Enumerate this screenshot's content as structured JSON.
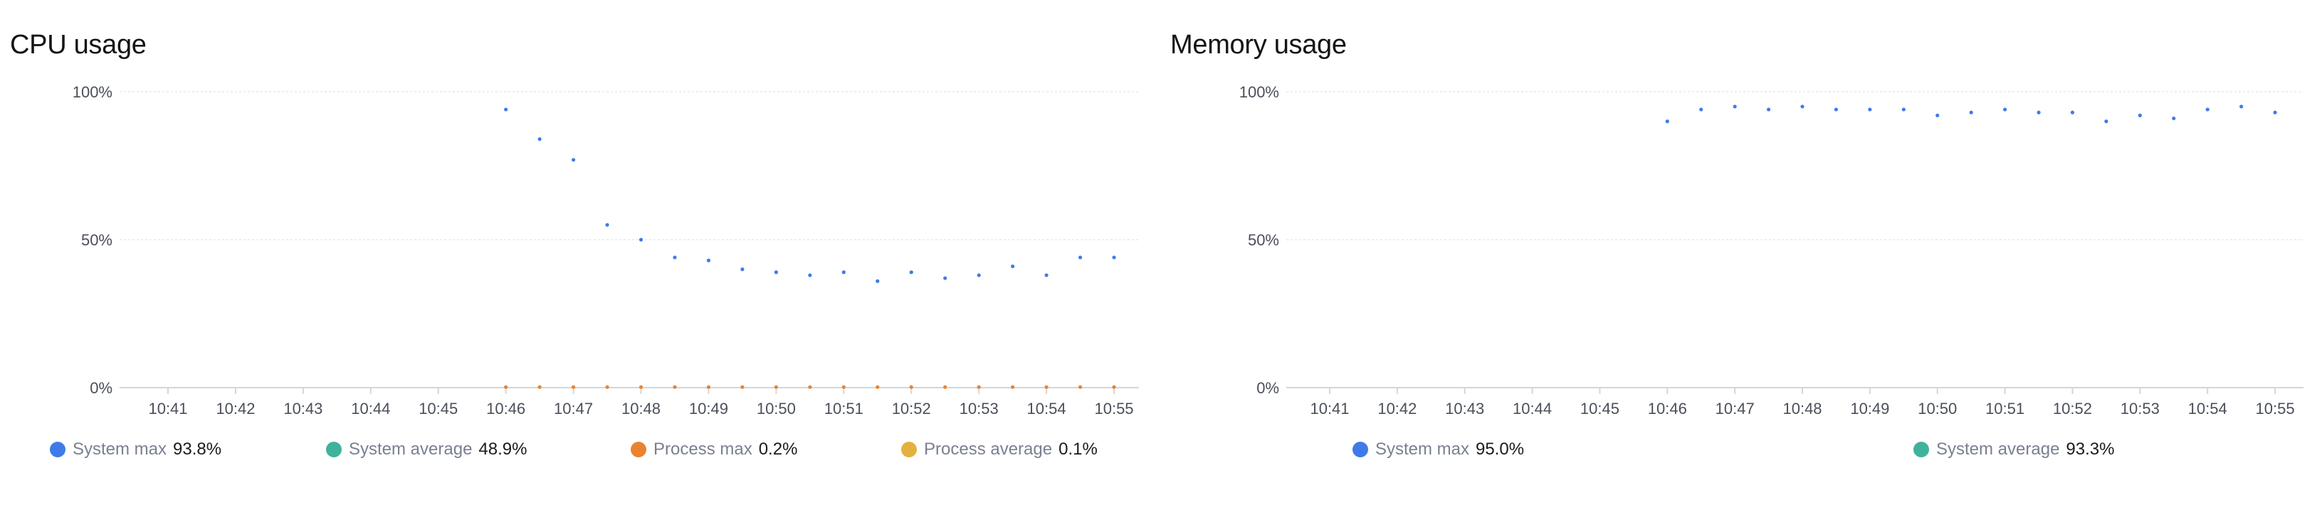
{
  "panels": [
    {
      "title": "CPU usage",
      "legend": [
        {
          "name": "System max",
          "value": "93.8%",
          "color": "#3f7be8"
        },
        {
          "name": "System average",
          "value": "48.9%",
          "color": "#40b29c"
        },
        {
          "name": "Process max",
          "value": "0.2%",
          "color": "#e9832f"
        },
        {
          "name": "Process average",
          "value": "0.1%",
          "color": "#e4b13f"
        }
      ]
    },
    {
      "title": "Memory usage",
      "legend": [
        {
          "name": "System max",
          "value": "95.0%",
          "color": "#3f7be8"
        },
        {
          "name": "System average",
          "value": "93.3%",
          "color": "#40b29c"
        }
      ]
    }
  ],
  "chart_data": [
    {
      "type": "scatter",
      "title": "CPU usage",
      "xlabel": "",
      "ylabel": "",
      "x_ticks": [
        "10:41",
        "10:42",
        "10:43",
        "10:44",
        "10:45",
        "10:46",
        "10:47",
        "10:48",
        "10:49",
        "10:50",
        "10:51",
        "10:52",
        "10:53",
        "10:54",
        "10:55"
      ],
      "y_ticks": [
        "0%",
        "50%",
        "100%"
      ],
      "ylim": [
        0,
        100
      ],
      "grid": true,
      "x": [
        "10:46:00",
        "10:46:30",
        "10:47:00",
        "10:47:30",
        "10:48:00",
        "10:48:30",
        "10:49:00",
        "10:49:30",
        "10:50:00",
        "10:50:30",
        "10:51:00",
        "10:51:30",
        "10:52:00",
        "10:52:30",
        "10:53:00",
        "10:53:30",
        "10:54:00",
        "10:54:30",
        "10:55:00"
      ],
      "series": [
        {
          "name": "System max",
          "color": "#3f7be8",
          "values": [
            94,
            84,
            77,
            55,
            50,
            44,
            43,
            40,
            39,
            38,
            39,
            36,
            39,
            37,
            38,
            41,
            38,
            44,
            44
          ]
        },
        {
          "name": "Process max",
          "color": "#e9832f",
          "values": [
            0.2,
            0.2,
            0.2,
            0.2,
            0.2,
            0.2,
            0.2,
            0.2,
            0.2,
            0.2,
            0.2,
            0.2,
            0.2,
            0.2,
            0.2,
            0.2,
            0.2,
            0.2,
            0.2
          ]
        }
      ]
    },
    {
      "type": "scatter",
      "title": "Memory usage",
      "xlabel": "",
      "ylabel": "",
      "x_ticks": [
        "10:41",
        "10:42",
        "10:43",
        "10:44",
        "10:45",
        "10:46",
        "10:47",
        "10:48",
        "10:49",
        "10:50",
        "10:51",
        "10:52",
        "10:53",
        "10:54",
        "10:55"
      ],
      "y_ticks": [
        "0%",
        "50%",
        "100%"
      ],
      "ylim": [
        0,
        100
      ],
      "grid": true,
      "x": [
        "10:46:00",
        "10:46:30",
        "10:47:00",
        "10:47:30",
        "10:48:00",
        "10:48:30",
        "10:49:00",
        "10:49:30",
        "10:50:00",
        "10:50:30",
        "10:51:00",
        "10:51:30",
        "10:52:00",
        "10:52:30",
        "10:53:00",
        "10:53:30",
        "10:54:00",
        "10:54:30",
        "10:55:00"
      ],
      "series": [
        {
          "name": "System max",
          "color": "#3f7be8",
          "values": [
            90,
            94,
            95,
            94,
            95,
            94,
            94,
            94,
            92,
            93,
            94,
            93,
            93,
            90,
            92,
            91,
            94,
            95,
            93
          ]
        }
      ]
    }
  ]
}
